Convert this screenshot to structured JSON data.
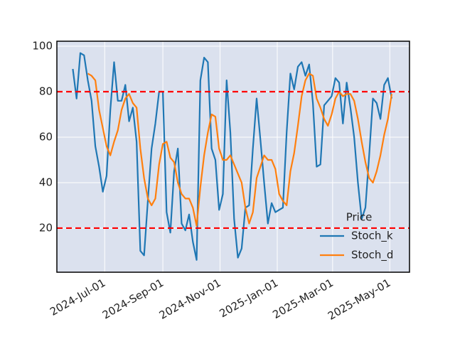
{
  "chart_data": {
    "type": "line",
    "x": [
      "2024-05-28",
      "2024-06-01",
      "2024-06-05",
      "2024-06-09",
      "2024-06-13",
      "2024-06-17",
      "2024-06-21",
      "2024-06-25",
      "2024-06-29",
      "2024-07-03",
      "2024-07-07",
      "2024-07-11",
      "2024-07-15",
      "2024-07-19",
      "2024-07-23",
      "2024-07-27",
      "2024-07-31",
      "2024-08-04",
      "2024-08-08",
      "2024-08-12",
      "2024-08-16",
      "2024-08-20",
      "2024-08-24",
      "2024-08-28",
      "2024-09-01",
      "2024-09-05",
      "2024-09-09",
      "2024-09-13",
      "2024-09-17",
      "2024-09-21",
      "2024-09-25",
      "2024-09-29",
      "2024-10-03",
      "2024-10-07",
      "2024-10-11",
      "2024-10-15",
      "2024-10-19",
      "2024-10-23",
      "2024-10-27",
      "2024-10-31",
      "2024-11-04",
      "2024-11-08",
      "2024-11-12",
      "2024-11-16",
      "2024-11-20",
      "2024-11-24",
      "2024-11-28",
      "2024-12-02",
      "2024-12-06",
      "2024-12-10",
      "2024-12-14",
      "2024-12-18",
      "2024-12-22",
      "2024-12-26",
      "2024-12-30",
      "2025-01-03",
      "2025-01-07",
      "2025-01-11",
      "2025-01-15",
      "2025-01-19",
      "2025-01-23",
      "2025-01-27",
      "2025-01-31",
      "2025-02-04",
      "2025-02-08",
      "2025-02-12",
      "2025-02-16",
      "2025-02-20",
      "2025-02-24",
      "2025-02-28",
      "2025-03-04",
      "2025-03-08",
      "2025-03-12",
      "2025-03-16",
      "2025-03-20",
      "2025-03-24",
      "2025-03-28",
      "2025-04-01",
      "2025-04-05",
      "2025-04-09",
      "2025-04-13",
      "2025-04-17",
      "2025-04-21",
      "2025-04-25",
      "2025-04-29",
      "2025-05-03"
    ],
    "series": [
      {
        "name": "Stoch_k",
        "color": "#1f77b4",
        "values": [
          90,
          77,
          97,
          96,
          85,
          76,
          56,
          47,
          36,
          43,
          72,
          93,
          76,
          76,
          83,
          67,
          73,
          58,
          10,
          8,
          32,
          55,
          66,
          80,
          80,
          27,
          18,
          45,
          55,
          22,
          19,
          26,
          14,
          6,
          85,
          95,
          93,
          55,
          50,
          28,
          35,
          85,
          62,
          24,
          7,
          11,
          29,
          30,
          55,
          77,
          59,
          40,
          22,
          31,
          27,
          28,
          29,
          62,
          88,
          81,
          91,
          93,
          87,
          92,
          75,
          47,
          48,
          74,
          76,
          78,
          86,
          84,
          66,
          84,
          73,
          60,
          40,
          24,
          29,
          52,
          77,
          75,
          68,
          83,
          86,
          77
        ]
      },
      {
        "name": "Stoch_d",
        "color": "#ff7f0e",
        "values": [
          null,
          null,
          null,
          null,
          88,
          87,
          85,
          72,
          64,
          56,
          52,
          58,
          63,
          72,
          77,
          79,
          75,
          73,
          55,
          42,
          33,
          30,
          33,
          48,
          57,
          58,
          51,
          49,
          40,
          35,
          33,
          33,
          29,
          21,
          38,
          52,
          62,
          70,
          69,
          55,
          50,
          50,
          52,
          48,
          44,
          40,
          29,
          22,
          27,
          42,
          47,
          52,
          50,
          50,
          46,
          35,
          32,
          30,
          45,
          53,
          65,
          78,
          85,
          88,
          87,
          77,
          73,
          68,
          65,
          70,
          77,
          80,
          78,
          79,
          79,
          76,
          68,
          58,
          49,
          42,
          40,
          45,
          52,
          61,
          68,
          79
        ]
      }
    ],
    "xlim": [
      "2024-05-11",
      "2025-05-22"
    ],
    "xticks": [
      {
        "value": "2024-07-01",
        "label": "2024-Jul-01"
      },
      {
        "value": "2024-09-01",
        "label": "2024-Sep-01"
      },
      {
        "value": "2024-11-01",
        "label": "2024-Nov-01"
      },
      {
        "value": "2025-01-01",
        "label": "2025-Jan-01"
      },
      {
        "value": "2025-03-01",
        "label": "2025-Mar-01"
      },
      {
        "value": "2025-05-01",
        "label": "2025-May-01"
      }
    ],
    "ylim": [
      0.6,
      102.2
    ],
    "yticks": [
      20,
      40,
      60,
      80,
      100
    ],
    "hlines": [
      80,
      20
    ],
    "hline_color": "#ff0000",
    "grid": true,
    "legend_title": "Price",
    "legend": "lower right"
  }
}
